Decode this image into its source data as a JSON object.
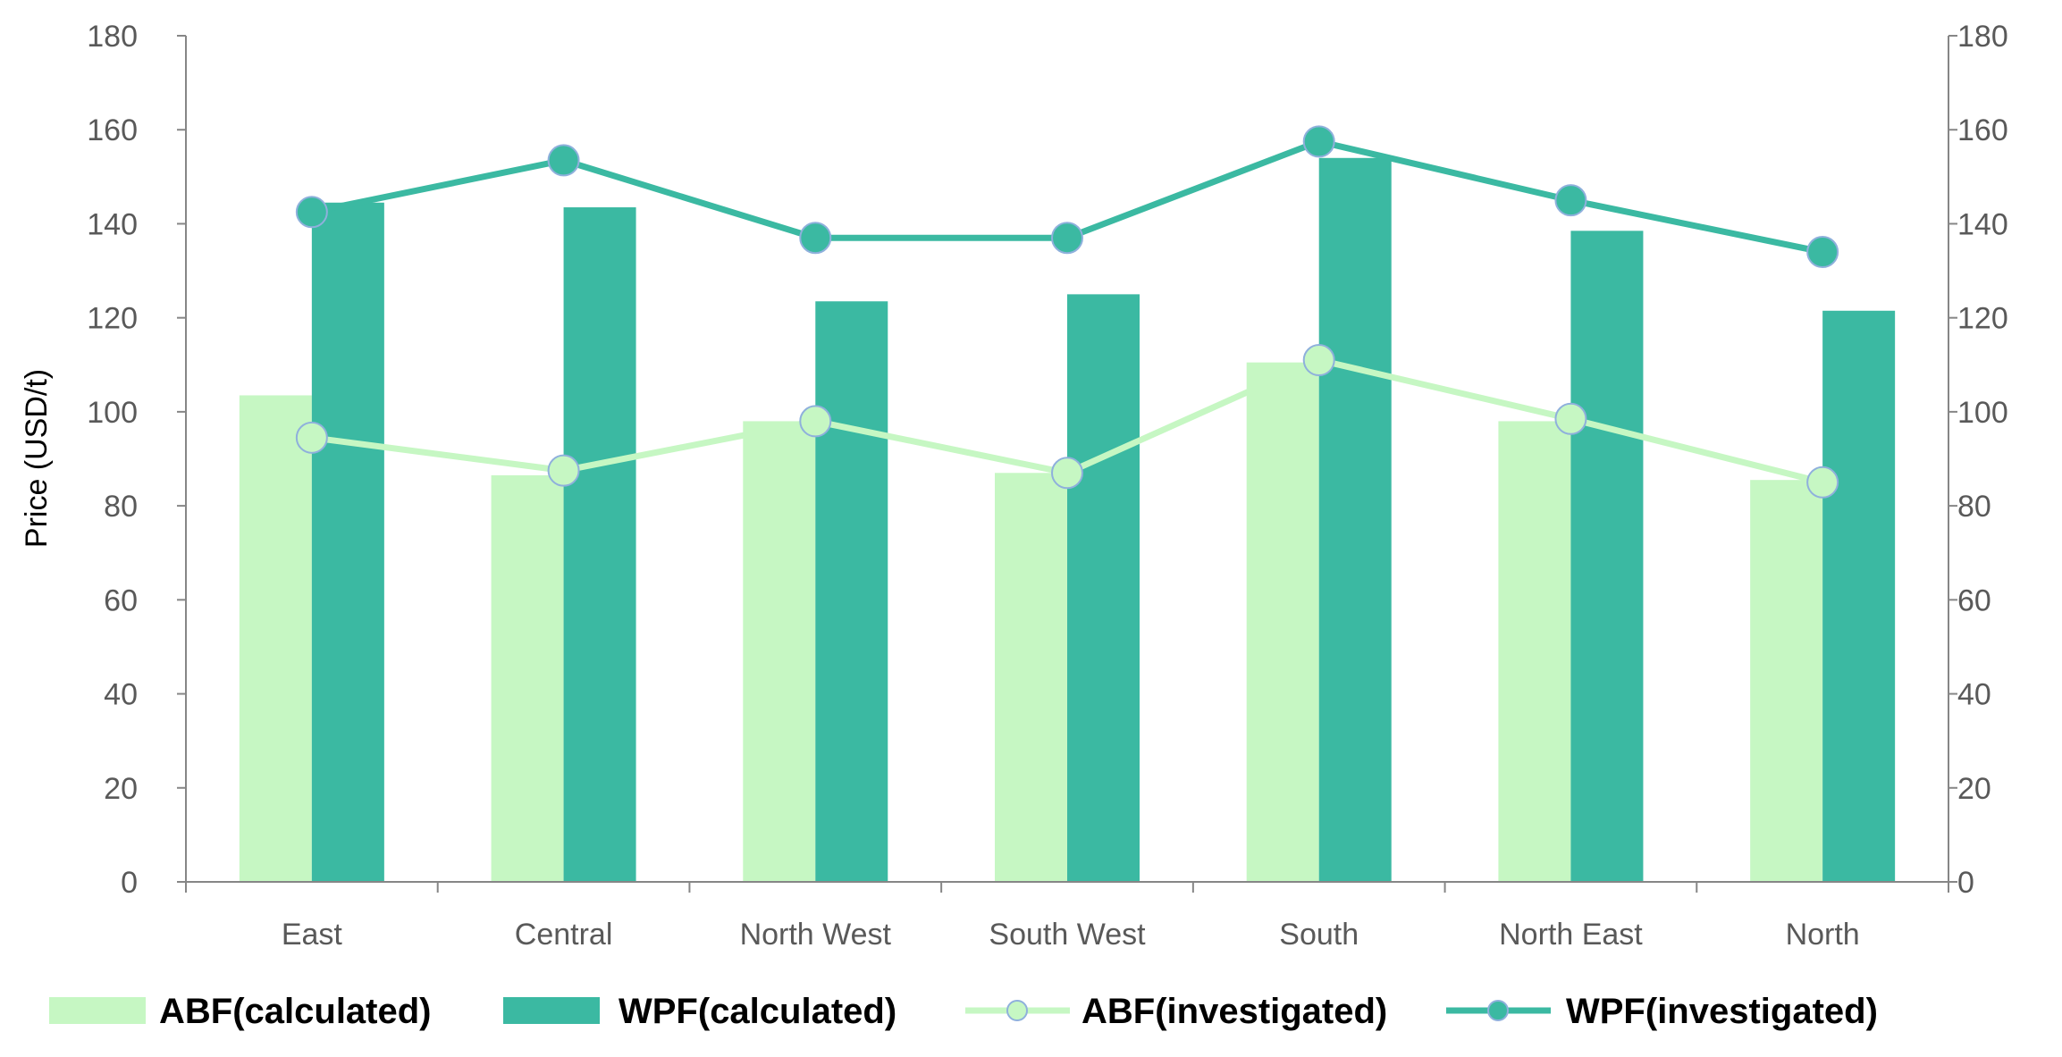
{
  "chart_data": {
    "type": "bar",
    "title": "",
    "xlabel": "",
    "ylabel": "Price (USD/t)",
    "ylim": [
      0,
      180
    ],
    "y2lim": [
      0,
      180
    ],
    "yticks": [
      "0",
      "20",
      "40",
      "60",
      "80",
      "100",
      "120",
      "140",
      "160",
      "180"
    ],
    "grid": false,
    "legend_position": "bottom",
    "categories": [
      "East",
      "Central",
      "North West",
      "South West",
      "South",
      "North East",
      "North"
    ],
    "series": [
      {
        "name": "ABF(calculated)",
        "kind": "bar",
        "color": "#c6f7c3",
        "values": [
          103.5,
          86.5,
          98,
          87,
          110.5,
          98,
          85.5
        ]
      },
      {
        "name": "WPF(calculated)",
        "kind": "bar",
        "color": "#3bb9a2",
        "values": [
          144.5,
          143.5,
          123.5,
          125,
          154,
          138.5,
          121.5
        ]
      },
      {
        "name": "ABF(investigated)",
        "kind": "line",
        "color": "#c6f7c3",
        "marker_fill": "#c6f7c3",
        "marker_stroke": "#8fb0dc",
        "values": [
          94.5,
          87.5,
          98,
          87,
          111,
          98.5,
          85
        ]
      },
      {
        "name": "WPF(investigated)",
        "kind": "line",
        "color": "#3bb9a2",
        "marker_fill": "#3bb9a2",
        "marker_stroke": "#8fb0dc",
        "values": [
          142.5,
          153.5,
          137,
          137,
          157.5,
          145,
          134
        ]
      }
    ]
  }
}
